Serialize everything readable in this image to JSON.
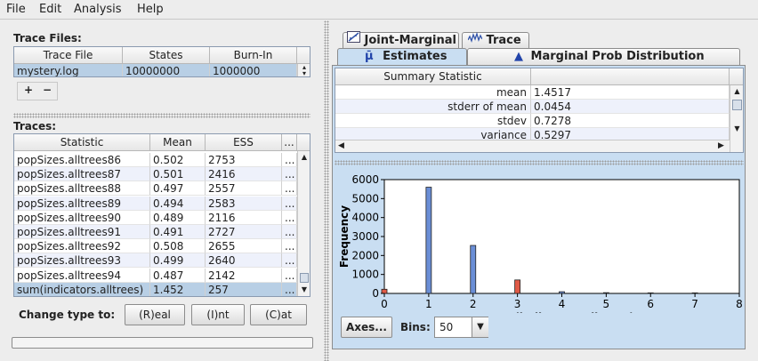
{
  "menu": [
    "File",
    "Edit",
    "Analysis",
    "Help"
  ],
  "trace_files": {
    "label": "Trace Files:",
    "headers": [
      "Trace File",
      "States",
      "Burn-In"
    ],
    "rows": [
      [
        "mystery.log",
        "10000000",
        "1000000"
      ]
    ],
    "add_label": "+",
    "remove_label": "−"
  },
  "traces": {
    "label": "Traces:",
    "headers": [
      "Statistic",
      "Mean",
      "ESS",
      "..."
    ],
    "rows": [
      [
        "popSizes.alltrees86",
        "0.502",
        "2753",
        "..."
      ],
      [
        "popSizes.alltrees87",
        "0.501",
        "2416",
        "..."
      ],
      [
        "popSizes.alltrees88",
        "0.497",
        "2557",
        "..."
      ],
      [
        "popSizes.alltrees89",
        "0.494",
        "2583",
        "..."
      ],
      [
        "popSizes.alltrees90",
        "0.489",
        "2116",
        "..."
      ],
      [
        "popSizes.alltrees91",
        "0.491",
        "2727",
        "..."
      ],
      [
        "popSizes.alltrees92",
        "0.508",
        "2655",
        "..."
      ],
      [
        "popSizes.alltrees93",
        "0.499",
        "2640",
        "..."
      ],
      [
        "popSizes.alltrees94",
        "0.487",
        "2142",
        "..."
      ],
      [
        "sum(indicators.alltrees)",
        "1.452",
        "257",
        "..."
      ]
    ],
    "selected_row": 9
  },
  "change_type": {
    "label": "Change type to:",
    "buttons": [
      "(R)eal",
      "(I)nt",
      "(C)at"
    ]
  },
  "tabs": {
    "row1": [
      "Joint-Marginal",
      "Trace"
    ],
    "row2": [
      "Estimates",
      "Marginal Prob Distribution"
    ],
    "selected": "Estimates",
    "icons": {
      "joint-marginal": "scatter-icon",
      "trace": "trace-line-icon",
      "estimates": "mu-icon",
      "marginal": "triangle-icon"
    }
  },
  "summary": {
    "header": "Summary Statistic",
    "rows": [
      [
        "mean",
        "1.4517"
      ],
      [
        "stderr of mean",
        "0.0454"
      ],
      [
        "stdev",
        "0.7278"
      ],
      [
        "variance",
        "0.5297"
      ]
    ]
  },
  "axes_button": "Axes...",
  "bins": {
    "label": "Bins:",
    "value": "50"
  },
  "chart_data": {
    "type": "bar",
    "xlabel": "sum(indicators.alltrees)",
    "ylabel": "Frequency",
    "xlim": [
      0,
      8
    ],
    "ylim": [
      0,
      6000
    ],
    "xticks": [
      "0",
      "1",
      "2",
      "3",
      "4",
      "5",
      "6",
      "7",
      "8"
    ],
    "yticks": [
      "0",
      "1000",
      "2000",
      "3000",
      "4000",
      "5000",
      "6000"
    ],
    "bars": [
      {
        "x": 0,
        "value": 220,
        "color": "#e05a46"
      },
      {
        "x": 1,
        "value": 5600,
        "color": "#6a8ed6"
      },
      {
        "x": 2,
        "value": 2530,
        "color": "#6a8ed6"
      },
      {
        "x": 3,
        "value": 710,
        "color": "#e05a46"
      },
      {
        "x": 4,
        "value": 90,
        "color": "#6a8ed6"
      },
      {
        "x": 5,
        "value": 40,
        "color": "#6a8ed6"
      },
      {
        "x": 6,
        "value": 30,
        "color": "#6a8ed6"
      },
      {
        "x": 7,
        "value": 30,
        "color": "#e05a46"
      }
    ]
  }
}
